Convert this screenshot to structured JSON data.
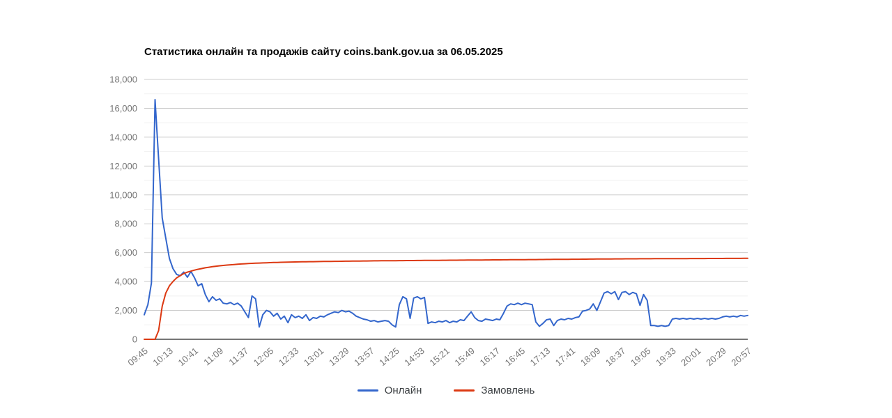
{
  "header": {
    "title": "Статистика онлайн та продажів сайту coins.bank.gov.ua за 06.05.2025"
  },
  "legend": {
    "items": [
      {
        "label": "Онлайн",
        "color": "#3366cc"
      },
      {
        "label": "Замовлень",
        "color": "#dc3912"
      }
    ]
  },
  "colors": {
    "online_series": "#3366cc",
    "orders_series": "#dc3912",
    "major_gridline": "#cccccc",
    "minor_gridline": "#f1f1f1",
    "axis_baseline": "#757575",
    "axis_label": "#757575"
  },
  "chart_data": {
    "type": "line",
    "title": "Статистика онлайн та продажів сайту coins.bank.gov.ua за 06.05.2025",
    "xlabel": "",
    "ylabel": "",
    "grid": true,
    "legend_position": "bottom",
    "x_start": "09:45",
    "x_end": "20:57",
    "x_step_minutes": 4,
    "x_tick_step_minutes": 28,
    "x_tick_labels": [
      "09:45",
      "10:13",
      "10:41",
      "11:09",
      "11:37",
      "12:05",
      "12:33",
      "13:01",
      "13:29",
      "13:57",
      "14:25",
      "14:53",
      "15:21",
      "15:49",
      "16:17",
      "16:45",
      "17:13",
      "17:41",
      "18:09",
      "18:37",
      "19:05",
      "19:33",
      "20:01",
      "20:29",
      "20:57"
    ],
    "y_axis": {
      "min": 0,
      "max": 18000,
      "major_step": 2000,
      "minor_step": 1000,
      "tick_labels": [
        "0",
        "2,000",
        "4,000",
        "6,000",
        "8,000",
        "10,000",
        "12,000",
        "14,000",
        "16,000",
        "18,000"
      ]
    },
    "series": [
      {
        "name": "Онлайн",
        "color": "#3366cc",
        "values": [
          1700,
          2400,
          3900,
          16600,
          12500,
          8400,
          7000,
          5600,
          4900,
          4500,
          4400,
          4650,
          4300,
          4700,
          4250,
          3700,
          3850,
          3100,
          2600,
          2950,
          2700,
          2800,
          2500,
          2450,
          2550,
          2400,
          2500,
          2300,
          1900,
          1500,
          3000,
          2800,
          850,
          1700,
          2000,
          1900,
          1600,
          1800,
          1400,
          1600,
          1150,
          1700,
          1500,
          1600,
          1450,
          1700,
          1300,
          1500,
          1450,
          1600,
          1550,
          1700,
          1800,
          1900,
          1850,
          2000,
          1900,
          1950,
          1800,
          1600,
          1500,
          1400,
          1350,
          1250,
          1300,
          1200,
          1250,
          1300,
          1250,
          1000,
          850,
          2400,
          2950,
          2800,
          1450,
          2850,
          2950,
          2800,
          2900,
          1100,
          1200,
          1150,
          1250,
          1200,
          1300,
          1150,
          1250,
          1200,
          1350,
          1300,
          1600,
          1900,
          1500,
          1300,
          1250,
          1400,
          1350,
          1300,
          1400,
          1350,
          1800,
          2300,
          2450,
          2400,
          2500,
          2400,
          2500,
          2450,
          2400,
          1200,
          900,
          1100,
          1350,
          1400,
          950,
          1300,
          1400,
          1350,
          1450,
          1400,
          1500,
          1550,
          1950,
          2000,
          2100,
          2450,
          2000,
          2600,
          3200,
          3300,
          3150,
          3300,
          2750,
          3250,
          3300,
          3100,
          3250,
          3150,
          2350,
          3100,
          2700,
          950,
          950,
          900,
          950,
          900,
          950,
          1400,
          1450,
          1400,
          1450,
          1400,
          1450,
          1400,
          1450,
          1400,
          1450,
          1400,
          1450,
          1400,
          1450,
          1550,
          1600,
          1550,
          1600,
          1550,
          1650,
          1600,
          1650
        ]
      },
      {
        "name": "Замовлень",
        "color": "#dc3912",
        "values": [
          0,
          0,
          0,
          0,
          600,
          2300,
          3200,
          3700,
          4000,
          4250,
          4400,
          4550,
          4650,
          4720,
          4790,
          4850,
          4900,
          4950,
          4990,
          5030,
          5060,
          5090,
          5115,
          5140,
          5160,
          5180,
          5200,
          5215,
          5230,
          5245,
          5260,
          5270,
          5280,
          5290,
          5300,
          5310,
          5318,
          5325,
          5332,
          5338,
          5344,
          5350,
          5355,
          5360,
          5365,
          5370,
          5374,
          5378,
          5382,
          5386,
          5390,
          5393,
          5396,
          5399,
          5402,
          5405,
          5408,
          5411,
          5414,
          5417,
          5420,
          5423,
          5426,
          5429,
          5432,
          5435,
          5437,
          5439,
          5441,
          5443,
          5445,
          5447,
          5449,
          5451,
          5453,
          5455,
          5457,
          5459,
          5461,
          5463,
          5465,
          5467,
          5469,
          5471,
          5473,
          5475,
          5477,
          5479,
          5481,
          5483,
          5485,
          5487,
          5489,
          5491,
          5493,
          5495,
          5497,
          5499,
          5501,
          5503,
          5505,
          5507,
          5509,
          5511,
          5513,
          5515,
          5517,
          5519,
          5521,
          5523,
          5525,
          5527,
          5529,
          5531,
          5533,
          5535,
          5537,
          5539,
          5541,
          5543,
          5545,
          5547,
          5549,
          5551,
          5553,
          5555,
          5557,
          5559,
          5561,
          5563,
          5565,
          5567,
          5569,
          5571,
          5573,
          5574,
          5575,
          5576,
          5577,
          5578,
          5579,
          5580,
          5581,
          5582,
          5583,
          5584,
          5585,
          5586,
          5587,
          5588,
          5589,
          5590,
          5591,
          5592,
          5593,
          5594,
          5595,
          5596,
          5597,
          5598,
          5599,
          5600,
          5601,
          5602,
          5603,
          5604,
          5605,
          5606,
          5607
        ]
      }
    ]
  }
}
